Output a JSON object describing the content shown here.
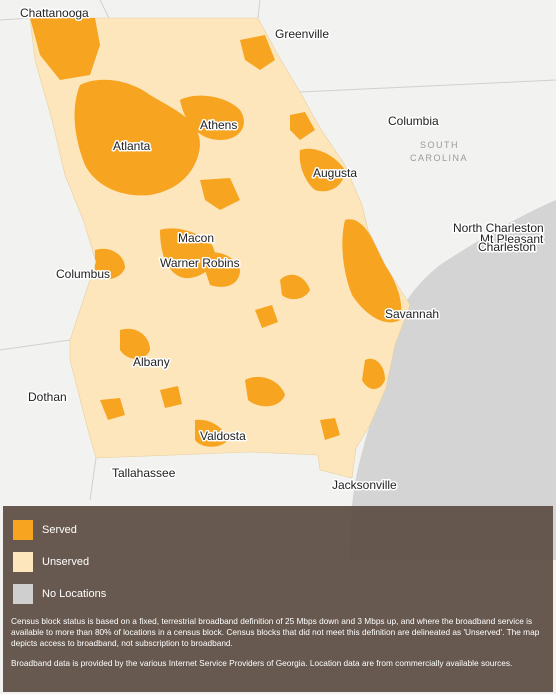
{
  "map": {
    "cities": [
      {
        "name": "Chattanooga"
      },
      {
        "name": "Greenville"
      },
      {
        "name": "Athens"
      },
      {
        "name": "Atlanta"
      },
      {
        "name": "Columbia"
      },
      {
        "name": "Augusta"
      },
      {
        "name": "North Charleston"
      },
      {
        "name": "Mt Pleasant"
      },
      {
        "name": "Charleston"
      },
      {
        "name": "Macon"
      },
      {
        "name": "Warner Robins"
      },
      {
        "name": "Columbus"
      },
      {
        "name": "Savannah"
      },
      {
        "name": "Albany"
      },
      {
        "name": "Dothan"
      },
      {
        "name": "Valdosta"
      },
      {
        "name": "Tallahassee"
      },
      {
        "name": "Jacksonville"
      }
    ],
    "state_label": [
      "SOUTH",
      "CAROLINA"
    ]
  },
  "legend": {
    "items": [
      {
        "label": "Served",
        "color": "#f7a421"
      },
      {
        "label": "Unserved",
        "color": "#fde6bb"
      },
      {
        "label": "No Locations",
        "color": "#cfcfcf"
      }
    ],
    "note1": "Census block status is based on a fixed, terrestrial broadband definition of 25 Mbps down and 3 Mbps up, and where the broadband service is available to more than 80% of locations in a census block.  Census blocks that did not meet this definition are delineated as 'Unserved'.  The map depicts access to broadband, not subscription to broadband.",
    "note2": "Broadband data is provided by the various Internet Service Providers of Georgia.  Location data are from commercially available sources."
  }
}
